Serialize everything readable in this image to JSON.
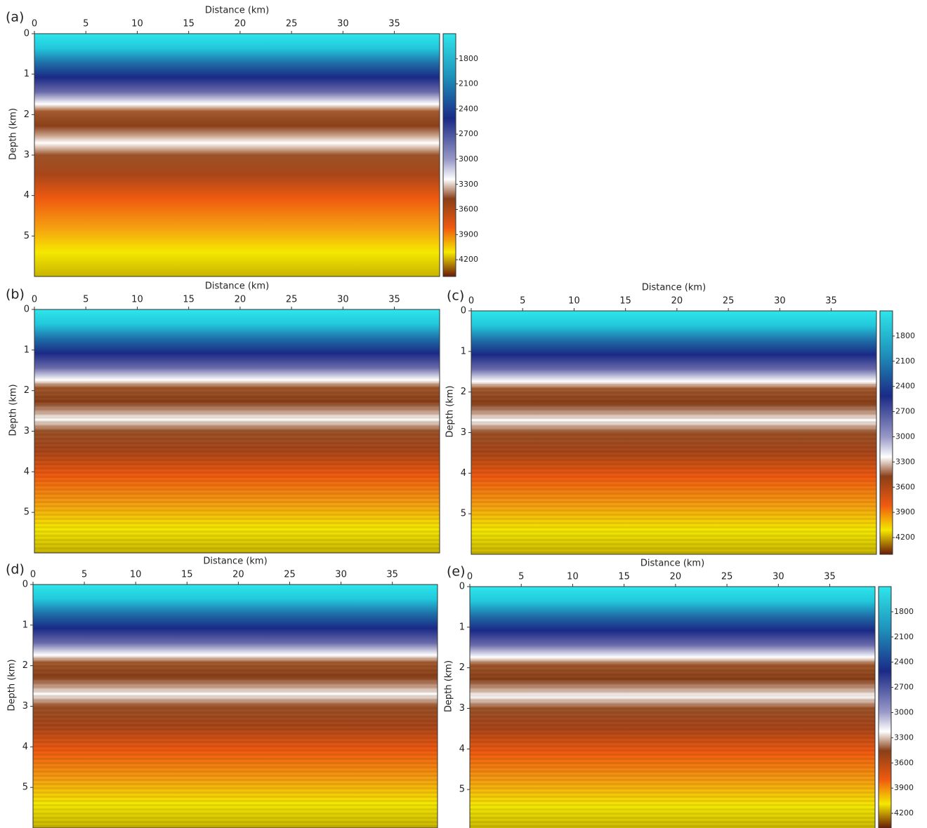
{
  "chart_data": [
    {
      "type": "heatmap",
      "panel_label": "(a)",
      "xlabel": "Distance (km)",
      "ylabel": "Depth (km)",
      "xlim": [
        0,
        39.4
      ],
      "ylim": [
        0,
        6
      ],
      "xticks": [
        0,
        5,
        10,
        15,
        20,
        25,
        30,
        35
      ],
      "yticks": [
        0,
        1,
        2,
        3,
        4,
        5
      ],
      "colorbar": {
        "lim": [
          1500,
          4400
        ],
        "ticks": [
          1800,
          2100,
          2400,
          2700,
          3000,
          3300,
          3600,
          3900,
          4200
        ]
      }
    },
    {
      "type": "heatmap",
      "panel_label": "(b)",
      "xlabel": "Distance (km)",
      "ylabel": "Depth (km)",
      "xlim": [
        0,
        39.4
      ],
      "ylim": [
        0,
        6
      ],
      "xticks": [
        0,
        5,
        10,
        15,
        20,
        25,
        30,
        35
      ],
      "yticks": [
        0,
        1,
        2,
        3,
        4,
        5
      ]
    },
    {
      "type": "heatmap",
      "panel_label": "(c)",
      "xlabel": "Distance (km)",
      "ylabel": "Depth (km)",
      "xlim": [
        0,
        39.4
      ],
      "ylim": [
        0,
        6
      ],
      "xticks": [
        0,
        5,
        10,
        15,
        20,
        25,
        30,
        35
      ],
      "yticks": [
        0,
        1,
        2,
        3,
        4,
        5
      ],
      "colorbar": {
        "lim": [
          1500,
          4400
        ],
        "ticks": [
          1800,
          2100,
          2400,
          2700,
          3000,
          3300,
          3600,
          3900,
          4200
        ]
      }
    },
    {
      "type": "heatmap",
      "panel_label": "(d)",
      "xlabel": "Distance (km)",
      "ylabel": "Depth (km)",
      "xlim": [
        0,
        39.4
      ],
      "ylim": [
        0,
        6
      ],
      "xticks": [
        0,
        5,
        10,
        15,
        20,
        25,
        30,
        35
      ],
      "yticks": [
        0,
        1,
        2,
        3,
        4,
        5
      ]
    },
    {
      "type": "heatmap",
      "panel_label": "(e)",
      "xlabel": "Distance (km)",
      "ylabel": "Depth (km)",
      "xlim": [
        0,
        39.4
      ],
      "ylim": [
        0,
        6
      ],
      "xticks": [
        0,
        5,
        10,
        15,
        20,
        25,
        30,
        35
      ],
      "yticks": [
        0,
        1,
        2,
        3,
        4,
        5
      ],
      "colorbar": {
        "lim": [
          1500,
          4400
        ],
        "ticks": [
          1800,
          2100,
          2400,
          2700,
          3000,
          3300,
          3600,
          3900,
          4200
        ]
      }
    }
  ]
}
